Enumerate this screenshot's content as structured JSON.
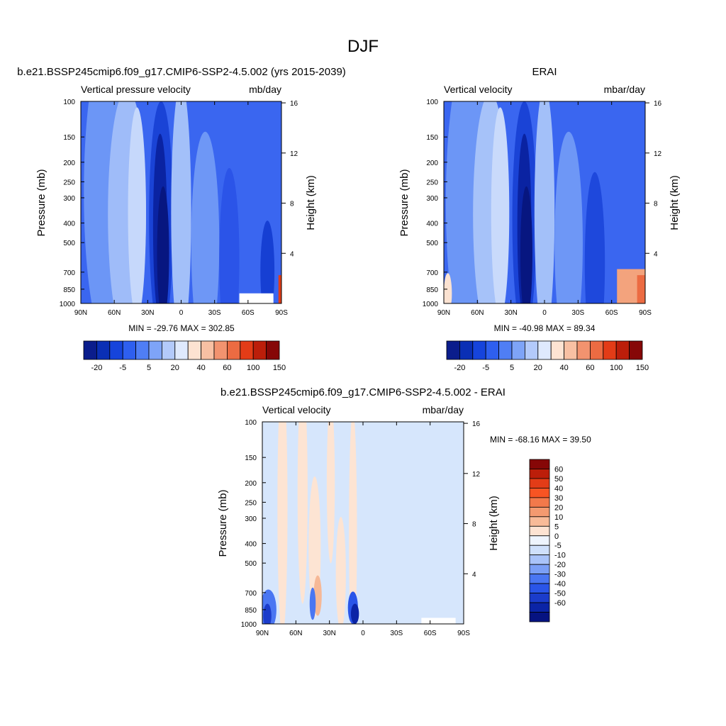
{
  "figure": {
    "title": "DJF"
  },
  "chart_data": [
    {
      "type": "heatmap",
      "title": "b.e21.BSSP245cmip6.f09_g17.CMIP6-SSP2-4.5.002 (yrs 2015-2039)",
      "left_string": "Vertical pressure velocity",
      "right_string": "mb/day",
      "ylabel": "Pressure (mb)",
      "ylabel_right": "Height (km)",
      "x_ticks": [
        "90N",
        "60N",
        "30N",
        "0",
        "30S",
        "60S",
        "90S"
      ],
      "y_ticks": [
        "100",
        "150",
        "200",
        "250",
        "300",
        "400",
        "500",
        "700",
        "850",
        "1000"
      ],
      "y_ticks_right": [
        "16",
        "12",
        "8",
        "4"
      ],
      "y_scale": "log",
      "ylim": [
        1000,
        100
      ],
      "minmax_text": "MIN = -29.76  MAX = 302.85",
      "colorbar": {
        "orientation": "horizontal",
        "labels": [
          "-20",
          "-5",
          "5",
          "20",
          "40",
          "60",
          "100",
          "150"
        ],
        "colors": [
          "#0b1d8c",
          "#0a2fb5",
          "#1644dc",
          "#2e5fef",
          "#4f7ef5",
          "#7ea4f8",
          "#b3cafb",
          "#dfe9fd",
          "#fde3d2",
          "#f8c0a3",
          "#f2936f",
          "#ec6b42",
          "#e33c17",
          "#bc1e0a",
          "#860707"
        ]
      }
    },
    {
      "type": "heatmap",
      "title": "ERAI",
      "left_string": "Vertical velocity",
      "right_string": "mbar/day",
      "ylabel": "Pressure (mb)",
      "ylabel_right": "Height (km)",
      "x_ticks": [
        "90N",
        "60N",
        "30N",
        "0",
        "30S",
        "60S",
        "90S"
      ],
      "y_ticks": [
        "100",
        "150",
        "200",
        "250",
        "300",
        "400",
        "500",
        "700",
        "850",
        "1000"
      ],
      "y_ticks_right": [
        "16",
        "12",
        "8",
        "4"
      ],
      "y_scale": "log",
      "ylim": [
        1000,
        100
      ],
      "minmax_text": "MIN = -40.98  MAX =  89.34",
      "colorbar": {
        "orientation": "horizontal",
        "labels": [
          "-20",
          "-5",
          "5",
          "20",
          "40",
          "60",
          "100",
          "150"
        ],
        "colors": [
          "#0b1d8c",
          "#0a2fb5",
          "#1644dc",
          "#2e5fef",
          "#4f7ef5",
          "#7ea4f8",
          "#b3cafb",
          "#dfe9fd",
          "#fde3d2",
          "#f8c0a3",
          "#f2936f",
          "#ec6b42",
          "#e33c17",
          "#bc1e0a",
          "#860707"
        ]
      }
    },
    {
      "type": "heatmap",
      "title": "b.e21.BSSP245cmip6.f09_g17.CMIP6-SSP2-4.5.002 - ERAI",
      "left_string": "Vertical velocity",
      "right_string": "mbar/day",
      "ylabel": "Pressure (mb)",
      "ylabel_right": "Height (km)",
      "x_ticks": [
        "90N",
        "60N",
        "30N",
        "0",
        "30S",
        "60S",
        "90S"
      ],
      "y_ticks": [
        "100",
        "150",
        "200",
        "250",
        "300",
        "400",
        "500",
        "700",
        "850",
        "1000"
      ],
      "y_ticks_right": [
        "16",
        "12",
        "8",
        "4"
      ],
      "y_scale": "log",
      "ylim": [
        1000,
        100
      ],
      "minmax_text": "MIN = -68.16  MAX =  39.50",
      "colorbar": {
        "orientation": "vertical",
        "labels": [
          "60",
          "50",
          "40",
          "30",
          "20",
          "10",
          "5",
          "0",
          "-5",
          "-10",
          "-20",
          "-30",
          "-40",
          "-50",
          "-60"
        ],
        "colors": [
          "#860707",
          "#bc1e0a",
          "#e33c17",
          "#f75423",
          "#f2794b",
          "#f49a70",
          "#f8bb98",
          "#fde3d2",
          "#eef4fd",
          "#cfe0fb",
          "#a9c3f9",
          "#7b9ff6",
          "#4a76f2",
          "#2a55e8",
          "#1b3ccb",
          "#0b24a6",
          "#061381"
        ]
      }
    }
  ]
}
